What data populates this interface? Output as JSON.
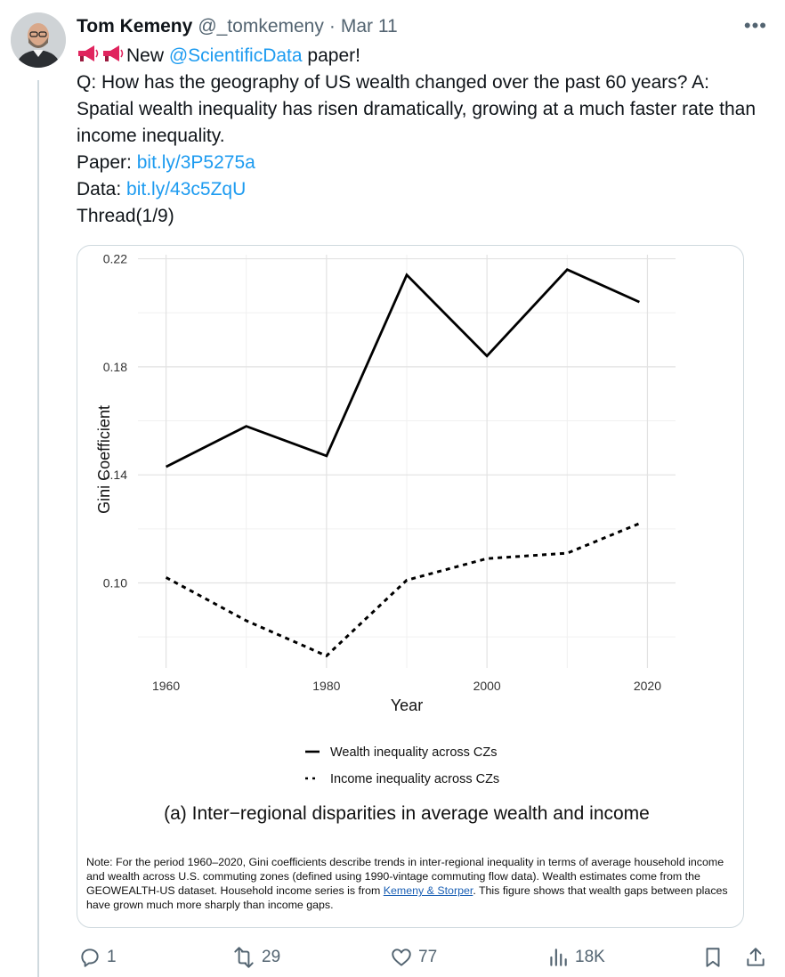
{
  "tweet": {
    "author_name": "Tom Kemeny",
    "handle": "@_tomkemeny",
    "separator": "·",
    "date": "Mar 11",
    "more_label": "•••",
    "line1_suffix": "New ",
    "mention": "@ScientificData",
    "line1_end": " paper!",
    "body": "Q: How has the geography of US wealth changed over the past 60 years? A: Spatial wealth inequality has risen dramatically, growing at a much faster rate than income inequality.",
    "paper_label": "Paper: ",
    "paper_link": "bit.ly/3P5275a",
    "data_label": "Data: ",
    "data_link": "bit.ly/43c5ZqU",
    "thread": "Thread(1/9)"
  },
  "icons": {
    "avatar": "avatar-photo",
    "megaphone": "megaphone-icon",
    "reply": "reply-icon",
    "retweet": "retweet-icon",
    "like": "heart-icon",
    "views": "views-icon",
    "bookmark": "bookmark-icon",
    "share": "share-icon"
  },
  "actions": {
    "replies": "1",
    "retweets": "29",
    "likes": "77",
    "views": "18K"
  },
  "colors": {
    "link": "#1d9bf0",
    "muted": "#536471",
    "megaphone": "#e0245e"
  },
  "chart_data": {
    "type": "line",
    "x": [
      1960,
      1970,
      1980,
      1990,
      2000,
      2010,
      2019
    ],
    "series": [
      {
        "name": "Wealth inequality across CZs",
        "style": "solid",
        "values": [
          0.143,
          0.158,
          0.147,
          0.214,
          0.184,
          0.216,
          0.204
        ]
      },
      {
        "name": "Income inequality across CZs",
        "style": "dashed",
        "values": [
          0.102,
          0.086,
          0.073,
          0.101,
          0.109,
          0.111,
          0.122
        ]
      }
    ],
    "xlabel": "Year",
    "ylabel": "Gini Coefficient",
    "xticks": [
      "1960",
      "1980",
      "2000",
      "2020"
    ],
    "yticks": [
      "0.10",
      "0.14",
      "0.18",
      "0.22"
    ],
    "xlim": [
      1956.5,
      2023.5
    ],
    "ylim": [
      0.0685,
      0.2215
    ],
    "grid": true,
    "legend_position": "bottom",
    "caption": "(a) Inter−regional disparities in average wealth and income",
    "note_text": "Note: For the period 1960–2020, Gini coefficients describe trends in inter-regional inequality in terms of average household income and wealth across U.S. commuting zones (defined using 1990-vintage commuting flow data). Wealth estimates come from the GEOWEALTH-US dataset. Household income series is from ",
    "note_link": "Kemeny & Storper",
    "note_end": ". This figure shows that wealth gaps between places have grown much more sharply than income gaps."
  }
}
